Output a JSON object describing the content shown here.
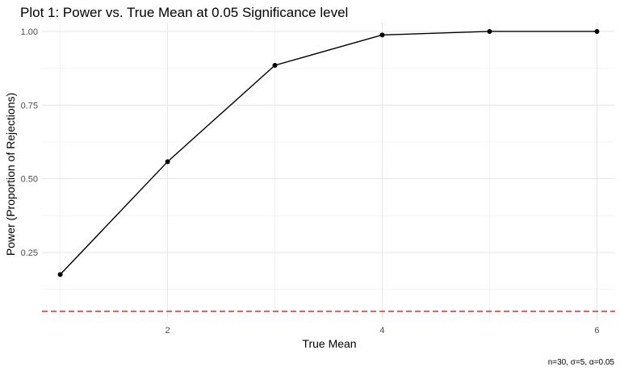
{
  "chart_data": {
    "type": "line",
    "title": "Plot 1: Power vs. True Mean at 0.05 Significance level",
    "xlabel": "True Mean",
    "ylabel": "Power (Proportion of Rejections)",
    "caption": "n=30, σ=5, α=0.05",
    "xlim": [
      0.83,
      6.17
    ],
    "ylim": [
      0.02,
      1.03
    ],
    "x_ticks": [
      2,
      4,
      6
    ],
    "y_ticks": [
      0.25,
      0.5,
      0.75,
      1.0
    ],
    "x_tick_labels": [
      "2",
      "4",
      "6"
    ],
    "y_tick_labels": [
      "0.25",
      "0.50",
      "0.75",
      "1.00"
    ],
    "grid": true,
    "series": [
      {
        "x": [
          1,
          2,
          3,
          4,
          5,
          6
        ],
        "y": [
          0.175,
          0.558,
          0.885,
          0.988,
          1.0,
          1.0
        ],
        "color": "#000000"
      }
    ],
    "reference_line": {
      "y": 0.05,
      "style": "dashed",
      "color": "#ff3333"
    }
  }
}
